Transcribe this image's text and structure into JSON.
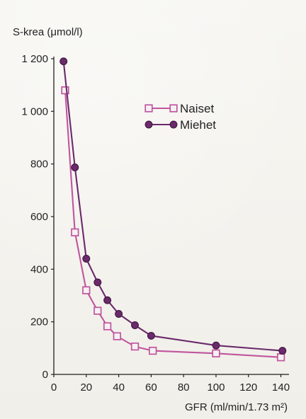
{
  "chart_data": {
    "type": "line",
    "ylabel": "S-krea (μmol/l)",
    "xlabel": "GFR (ml/min/1.73 m²)",
    "xlim": [
      0,
      145
    ],
    "ylim": [
      0,
      1200
    ],
    "x_ticks": [
      0,
      20,
      40,
      60,
      80,
      100,
      120,
      140
    ],
    "x_tick_labels": [
      "0",
      "20",
      "40",
      "60",
      "80",
      "100",
      "120",
      "140"
    ],
    "y_ticks": [
      0,
      200,
      400,
      600,
      800,
      1000,
      1200
    ],
    "y_tick_labels": [
      "0",
      "200",
      "400",
      "600",
      "800",
      "1 000",
      "1 200"
    ],
    "legend_position": "top-right",
    "series": [
      {
        "name": "Naiset",
        "color": "#c0559e",
        "marker": "square-open",
        "points": [
          [
            7,
            1080
          ],
          [
            13,
            540
          ],
          [
            20,
            320
          ],
          [
            27,
            242
          ],
          [
            33,
            183
          ],
          [
            39,
            145
          ],
          [
            50,
            106
          ],
          [
            61,
            90
          ],
          [
            100,
            80
          ],
          [
            140,
            65
          ]
        ]
      },
      {
        "name": "Miehet",
        "color": "#6a2a6c",
        "marker": "circle-filled",
        "points": [
          [
            6,
            1190
          ],
          [
            13,
            787
          ],
          [
            20,
            440
          ],
          [
            27,
            350
          ],
          [
            33,
            282
          ],
          [
            40,
            230
          ],
          [
            50,
            187
          ],
          [
            60,
            147
          ],
          [
            100,
            110
          ],
          [
            141,
            90
          ]
        ]
      }
    ]
  }
}
